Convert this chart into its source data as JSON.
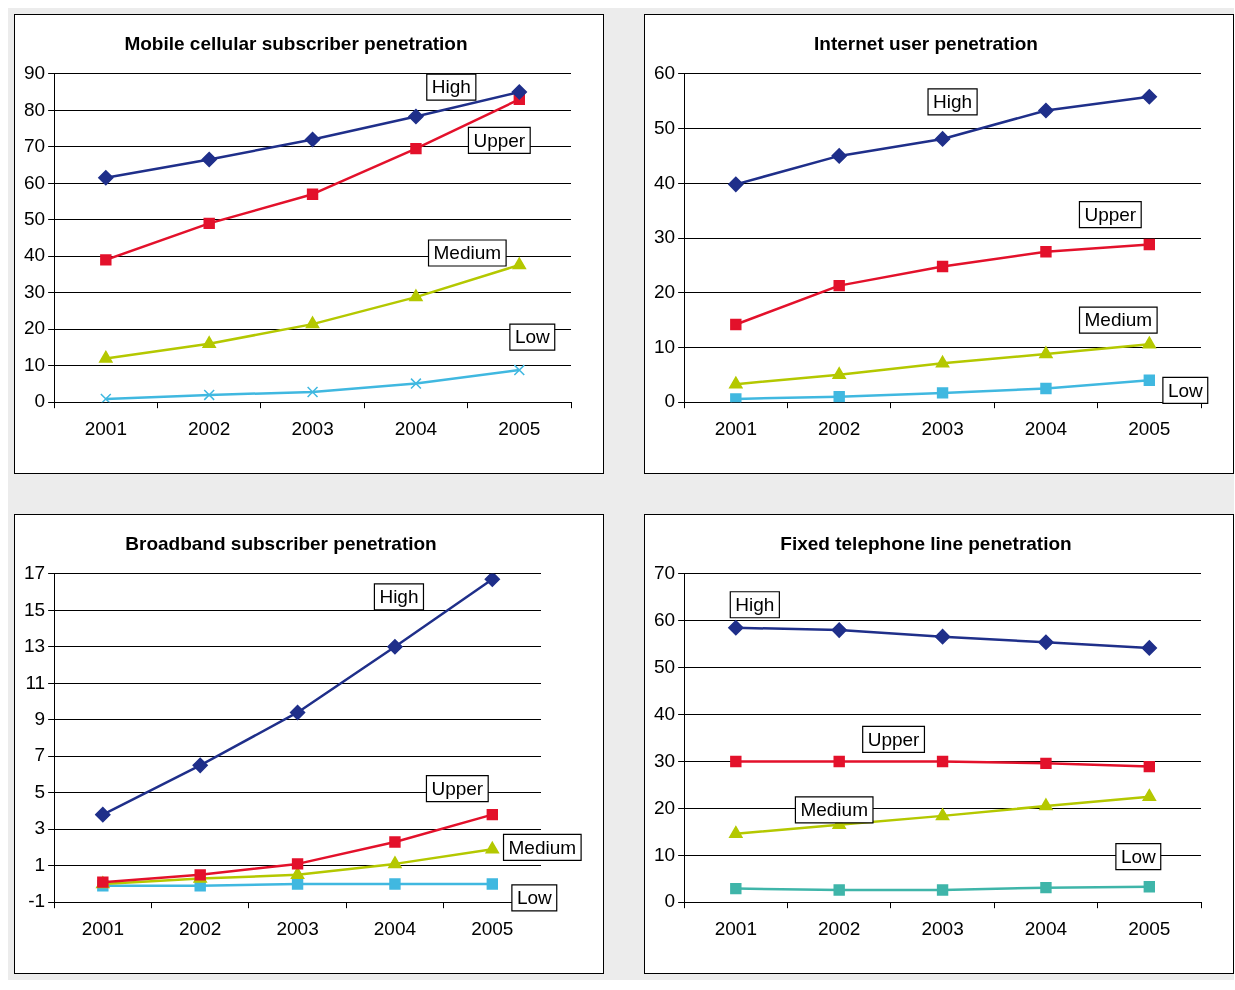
{
  "chart_data": [
    {
      "type": "line",
      "title": "Mobile cellular subscriber penetration",
      "categories": [
        "2001",
        "2002",
        "2003",
        "2004",
        "2005"
      ],
      "ylim": [
        0,
        90
      ],
      "yticks": [
        0,
        10,
        20,
        30,
        40,
        50,
        60,
        70,
        80,
        90
      ],
      "grid": "y",
      "series": [
        {
          "name": "High",
          "color": "#1f2f8a",
          "marker": "diamond",
          "values": [
            61.5,
            66.5,
            72,
            78.3,
            85
          ]
        },
        {
          "name": "Upper",
          "color": "#e3112b",
          "marker": "square",
          "values": [
            39,
            49,
            57,
            69.5,
            83
          ]
        },
        {
          "name": "Medium",
          "color": "#b4c800",
          "marker": "triangle",
          "values": [
            12,
            16,
            21.4,
            28.8,
            37.6
          ]
        },
        {
          "name": "Low",
          "color": "#40b8e0",
          "marker": "cross",
          "values": [
            0.9,
            2,
            2.8,
            5.1,
            8.8
          ]
        }
      ]
    },
    {
      "type": "line",
      "title": "Internet user penetration",
      "categories": [
        "2001",
        "2002",
        "2003",
        "2004",
        "2005"
      ],
      "ylim": [
        0,
        60
      ],
      "yticks": [
        0,
        10,
        20,
        30,
        40,
        50,
        60
      ],
      "grid": "y",
      "series": [
        {
          "name": "High",
          "color": "#1f2f8a",
          "marker": "diamond",
          "values": [
            39.8,
            45,
            48.1,
            53.3,
            55.8
          ]
        },
        {
          "name": "Upper",
          "color": "#e3112b",
          "marker": "square",
          "values": [
            14.2,
            21.3,
            24.8,
            27.5,
            28.8
          ]
        },
        {
          "name": "Medium",
          "color": "#b4c800",
          "marker": "triangle",
          "values": [
            3.3,
            5,
            7.1,
            8.8,
            10.6
          ]
        },
        {
          "name": "Low",
          "color": "#40b8e0",
          "marker": "square",
          "values": [
            0.6,
            1,
            1.7,
            2.5,
            4
          ]
        }
      ]
    },
    {
      "type": "line",
      "title": "Broadband subscriber penetration",
      "categories": [
        "2001",
        "2002",
        "2003",
        "2004",
        "2005"
      ],
      "ylim": [
        -1,
        17
      ],
      "yticks": [
        -1,
        1,
        3,
        5,
        7,
        9,
        11,
        13,
        15,
        17
      ],
      "grid": "y",
      "series": [
        {
          "name": "High",
          "color": "#1f2f8a",
          "marker": "diamond",
          "values": [
            3.8,
            6.5,
            9.4,
            13,
            16.7
          ]
        },
        {
          "name": "Upper",
          "color": "#e3112b",
          "marker": "square",
          "values": [
            0.1,
            0.5,
            1.1,
            2.3,
            3.8
          ]
        },
        {
          "name": "Medium",
          "color": "#b4c800",
          "marker": "triangle",
          "values": [
            0,
            0.3,
            0.5,
            1.1,
            1.9
          ]
        },
        {
          "name": "Low",
          "color": "#40b8e0",
          "marker": "square",
          "values": [
            -0.1,
            -0.1,
            0,
            0,
            0
          ]
        }
      ]
    },
    {
      "type": "line",
      "title": "Fixed telephone line penetration",
      "categories": [
        "2001",
        "2002",
        "2003",
        "2004",
        "2005"
      ],
      "ylim": [
        0,
        70
      ],
      "yticks": [
        0,
        10,
        20,
        30,
        40,
        50,
        60,
        70
      ],
      "grid": "y",
      "series": [
        {
          "name": "High",
          "color": "#1f2f8a",
          "marker": "diamond",
          "values": [
            58.5,
            58,
            56.6,
            55.4,
            54.2
          ]
        },
        {
          "name": "Upper",
          "color": "#e3112b",
          "marker": "square",
          "values": [
            30,
            30,
            30,
            29.6,
            28.9
          ]
        },
        {
          "name": "Medium",
          "color": "#b4c800",
          "marker": "triangle",
          "values": [
            14.6,
            16.5,
            18.4,
            20.5,
            22.5
          ]
        },
        {
          "name": "Low",
          "color": "#3fb5a9",
          "marker": "square",
          "values": [
            2.9,
            2.6,
            2.6,
            3.1,
            3.3
          ]
        }
      ]
    }
  ]
}
